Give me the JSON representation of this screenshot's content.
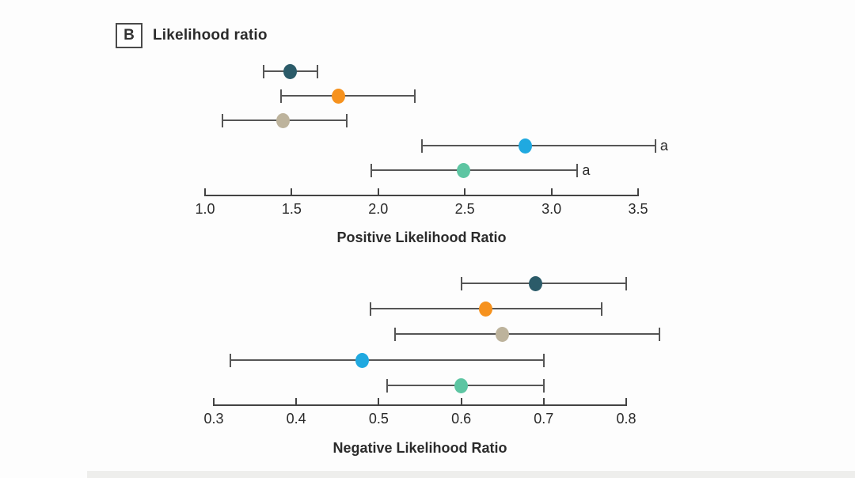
{
  "panel": {
    "label": "B",
    "title": "Likelihood ratio"
  },
  "colors": {
    "dark_teal": "#2b5b69",
    "orange": "#f6921e",
    "tan": "#bdb39c",
    "light_blue": "#20a9e0",
    "sea_green": "#5dc5a2",
    "error_bar": "#565656",
    "axis": "#434343"
  },
  "chart_data": [
    {
      "type": "scatter",
      "subtype": "forest-plot-horizontal-ci",
      "title": "",
      "xlabel": "Positive Likelihood Ratio",
      "ylabel": "",
      "xlim": [
        1.0,
        3.5
      ],
      "xticks": [
        "1.0",
        "1.5",
        "2.0",
        "2.5",
        "3.0",
        "3.5"
      ],
      "grid": false,
      "legend": "none",
      "series": [
        {
          "color": "#2b5b69",
          "value": 1.49,
          "ci_low": 1.34,
          "ci_high": 1.65,
          "footnote": ""
        },
        {
          "color": "#f6921e",
          "value": 1.77,
          "ci_low": 1.44,
          "ci_high": 2.21,
          "footnote": ""
        },
        {
          "color": "#bdb39c",
          "value": 1.45,
          "ci_low": 1.1,
          "ci_high": 1.82,
          "footnote": ""
        },
        {
          "color": "#20a9e0",
          "value": 2.85,
          "ci_low": 2.25,
          "ci_high": 3.6,
          "footnote": "a"
        },
        {
          "color": "#5dc5a2",
          "value": 2.49,
          "ci_low": 1.96,
          "ci_high": 3.15,
          "footnote": "a"
        }
      ]
    },
    {
      "type": "scatter",
      "subtype": "forest-plot-horizontal-ci",
      "title": "",
      "xlabel": "Negative Likelihood Ratio",
      "ylabel": "",
      "xlim": [
        0.3,
        0.8
      ],
      "xticks": [
        "0.3",
        "0.4",
        "0.5",
        "0.6",
        "0.7",
        "0.8"
      ],
      "grid": false,
      "legend": "none",
      "series": [
        {
          "color": "#2b5b69",
          "value": 0.69,
          "ci_low": 0.6,
          "ci_high": 0.8,
          "footnote": ""
        },
        {
          "color": "#f6921e",
          "value": 0.63,
          "ci_low": 0.49,
          "ci_high": 0.77,
          "footnote": ""
        },
        {
          "color": "#bdb39c",
          "value": 0.65,
          "ci_low": 0.52,
          "ci_high": 0.84,
          "footnote": ""
        },
        {
          "color": "#20a9e0",
          "value": 0.48,
          "ci_low": 0.32,
          "ci_high": 0.7,
          "footnote": ""
        },
        {
          "color": "#5dc5a2",
          "value": 0.6,
          "ci_low": 0.51,
          "ci_high": 0.7,
          "footnote": ""
        }
      ]
    }
  ]
}
